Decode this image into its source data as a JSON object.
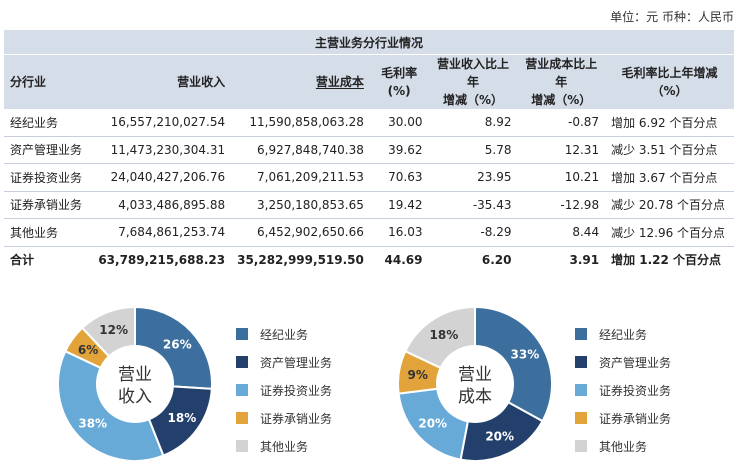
{
  "unit_note": "单位：元  币种：人民币",
  "table": {
    "title": "主营业务分行业情况",
    "headers": {
      "industry": "分行业",
      "revenue": "营业收入",
      "cost": "营业成本",
      "margin_l1": "毛利率",
      "margin_l2": "(%)",
      "rev_chg_l1": "营业收入比上年",
      "rev_chg_l2": "增减（%）",
      "cost_chg_l1": "营业成本比上年",
      "cost_chg_l2": "增减（%）",
      "margin_chg": "毛利率比上年增减（%）"
    },
    "rows": [
      {
        "industry": "经纪业务",
        "revenue": "16,557,210,027.54",
        "cost": "11,590,858,063.28",
        "margin": "30.00",
        "rev_chg": "8.92",
        "cost_chg": "-0.87",
        "margin_chg": "增加 6.92 个百分点"
      },
      {
        "industry": "资产管理业务",
        "revenue": "11,473,230,304.31",
        "cost": "6,927,848,740.38",
        "margin": "39.62",
        "rev_chg": "5.78",
        "cost_chg": "12.31",
        "margin_chg": "减少 3.51 个百分点"
      },
      {
        "industry": "证券投资业务",
        "revenue": "24,040,427,206.76",
        "cost": "7,061,209,211.53",
        "margin": "70.63",
        "rev_chg": "23.95",
        "cost_chg": "10.21",
        "margin_chg": "增加 3.67 个百分点"
      },
      {
        "industry": "证券承销业务",
        "revenue": "4,033,486,895.88",
        "cost": "3,250,180,853.65",
        "margin": "19.42",
        "rev_chg": "-35.43",
        "cost_chg": "-12.98",
        "margin_chg": "减少 20.78 个百分点"
      },
      {
        "industry": "其他业务",
        "revenue": "7,684,861,253.74",
        "cost": "6,452,902,650.66",
        "margin": "16.03",
        "rev_chg": "-8.29",
        "cost_chg": "8.44",
        "margin_chg": "减少 12.96 个百分点"
      }
    ],
    "total": {
      "industry": "合计",
      "revenue": "63,789,215,688.23",
      "cost": "35,282,999,519.50",
      "margin": "44.69",
      "rev_chg": "6.20",
      "cost_chg": "3.91",
      "margin_chg": "增加 1.22 个百分点"
    }
  },
  "chart_data": [
    {
      "type": "pie",
      "center_label": [
        "营业",
        "收入"
      ],
      "categories": [
        "经纪业务",
        "资产管理业务",
        "证券投资业务",
        "证券承销业务",
        "其他业务"
      ],
      "values": [
        26,
        18,
        38,
        6,
        12
      ],
      "value_labels": [
        "26%",
        "18%",
        "38%",
        "6%",
        "12%"
      ],
      "colors": [
        "#3d6f9e",
        "#23406d",
        "#67aad8",
        "#e2a33a",
        "#d3d3d3"
      ],
      "legend_position": "right"
    },
    {
      "type": "pie",
      "center_label": [
        "营业",
        "成本"
      ],
      "categories": [
        "经纪业务",
        "资产管理业务",
        "证券投资业务",
        "证券承销业务",
        "其他业务"
      ],
      "values": [
        33,
        20,
        20,
        9,
        18
      ],
      "value_labels": [
        "33%",
        "20%",
        "20%",
        "9%",
        "18%"
      ],
      "colors": [
        "#3d6f9e",
        "#23406d",
        "#67aad8",
        "#e2a33a",
        "#d3d3d3"
      ],
      "legend_position": "right"
    }
  ]
}
